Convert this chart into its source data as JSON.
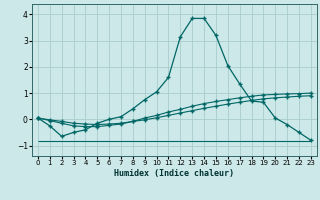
{
  "xlabel": "Humidex (Indice chaleur)",
  "xlim": [
    -0.5,
    23.5
  ],
  "ylim": [
    -1.4,
    4.4
  ],
  "yticks": [
    -1,
    0,
    1,
    2,
    3,
    4
  ],
  "xticks": [
    0,
    1,
    2,
    3,
    4,
    5,
    6,
    7,
    8,
    9,
    10,
    11,
    12,
    13,
    14,
    15,
    16,
    17,
    18,
    19,
    20,
    21,
    22,
    23
  ],
  "bg_color": "#cde8e8",
  "grid_color": "#aacccc",
  "line_color": "#006666",
  "line1_x": [
    0,
    1,
    2,
    3,
    4,
    5,
    6,
    7,
    8,
    9,
    10,
    11,
    12,
    13,
    14,
    15,
    16,
    17,
    18,
    19,
    20,
    21,
    22,
    23
  ],
  "line1_y": [
    0.05,
    -0.25,
    -0.65,
    -0.5,
    -0.4,
    -0.15,
    0.0,
    0.1,
    0.4,
    0.75,
    1.05,
    1.6,
    3.15,
    3.85,
    3.85,
    3.2,
    2.05,
    1.35,
    0.7,
    0.65,
    0.05,
    -0.2,
    -0.5,
    -0.8
  ],
  "line2_x": [
    0,
    1,
    2,
    3,
    4,
    5,
    6,
    7,
    8,
    9,
    10,
    11,
    12,
    13,
    14,
    15,
    16,
    17,
    18,
    19,
    20,
    21,
    22,
    23
  ],
  "line2_y": [
    0.05,
    -0.05,
    -0.15,
    -0.25,
    -0.28,
    -0.28,
    -0.23,
    -0.18,
    -0.08,
    0.05,
    0.15,
    0.28,
    0.38,
    0.5,
    0.6,
    0.68,
    0.75,
    0.82,
    0.88,
    0.93,
    0.95,
    0.97,
    0.98,
    1.0
  ],
  "line3_x": [
    0,
    1,
    2,
    3,
    4,
    5,
    6,
    7,
    8,
    9,
    10,
    11,
    12,
    13,
    14,
    15,
    16,
    17,
    18,
    19,
    20,
    21,
    22,
    23
  ],
  "line3_y": [
    0.05,
    -0.02,
    -0.08,
    -0.15,
    -0.18,
    -0.2,
    -0.18,
    -0.15,
    -0.08,
    -0.02,
    0.06,
    0.15,
    0.24,
    0.33,
    0.42,
    0.5,
    0.58,
    0.65,
    0.72,
    0.78,
    0.82,
    0.85,
    0.88,
    0.9
  ],
  "line_flat_y": -0.82
}
